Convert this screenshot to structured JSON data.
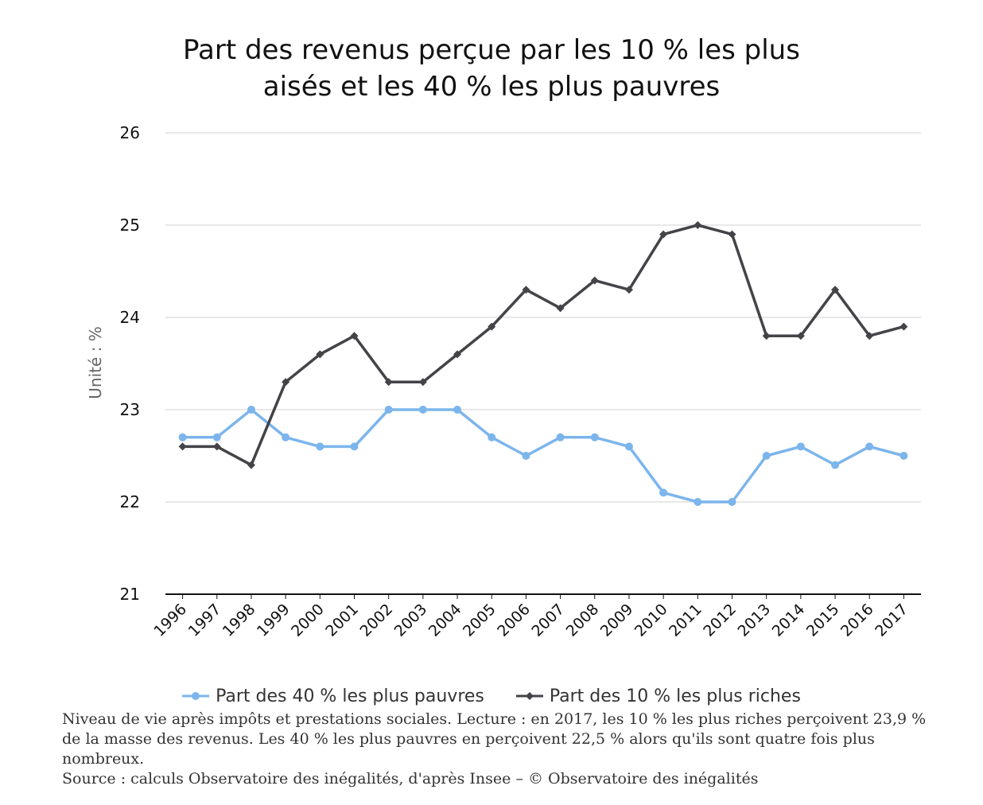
{
  "title_line1": "Part des revenus perçue par les 10 % les plus",
  "title_line2": "aisés et les 40 % les plus pauvres",
  "note": "Niveau de vie après impôts et prestations sociales. Lecture : en 2017, les 10 % les plus riches perçoivent 23,9 % de la masse des revenus. Les 40 % les plus pauvres en perçoivent 22,5 % alors qu'ils sont quatre fois plus nombreux.",
  "source": "Source : calculs Observatoire des inégalités, d'après Insee – © Observatoire des inégalités",
  "chart_data": {
    "type": "line",
    "title": "Part des revenus perçue par les 10 % les plus aisés et les 40 % les plus pauvres",
    "xlabel": "",
    "ylabel": "Unité : %",
    "ylim": [
      21,
      26
    ],
    "yticks": [
      "21",
      "22",
      "23",
      "24",
      "25",
      "26"
    ],
    "grid": true,
    "legend_position": "bottom",
    "categories": [
      "1996",
      "1997",
      "1998",
      "1999",
      "2000",
      "2001",
      "2002",
      "2003",
      "2004",
      "2005",
      "2006",
      "2007",
      "2008",
      "2009",
      "2010",
      "2011",
      "2012",
      "2013",
      "2014",
      "2015",
      "2016",
      "2017"
    ],
    "series": [
      {
        "name": "Part des 40 % les plus pauvres",
        "color": "#7cb5ec",
        "marker": "circle",
        "values": [
          22.7,
          22.7,
          23.0,
          22.7,
          22.6,
          22.6,
          23.0,
          23.0,
          23.0,
          22.7,
          22.5,
          22.7,
          22.7,
          22.6,
          22.1,
          22.0,
          22.0,
          22.5,
          22.6,
          22.4,
          22.6,
          22.5
        ]
      },
      {
        "name": "Part des 10 % les plus riches",
        "color": "#434348",
        "marker": "diamond",
        "values": [
          22.6,
          22.6,
          22.4,
          23.3,
          23.6,
          23.8,
          23.3,
          23.3,
          23.6,
          23.9,
          24.3,
          24.1,
          24.4,
          24.3,
          24.9,
          25.0,
          24.9,
          23.8,
          23.8,
          24.3,
          23.8,
          23.9
        ]
      }
    ]
  }
}
